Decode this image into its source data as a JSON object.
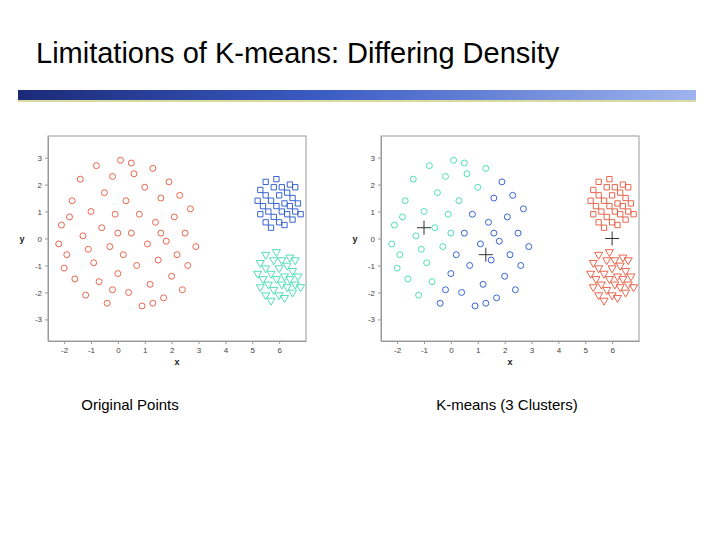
{
  "slide": {
    "title": "Limitations of K-means: Differing Density"
  },
  "chart_data": [
    {
      "type": "scatter",
      "title": "Original Points",
      "x_label": "x",
      "y_label": "y",
      "xlim": [
        -2.6,
        7
      ],
      "ylim": [
        -3.8,
        3.8
      ],
      "xticks": [
        -2,
        -1,
        0,
        1,
        2,
        3,
        4,
        5,
        6
      ],
      "yticks": [
        -3,
        -2,
        -1,
        0,
        1,
        2,
        3
      ],
      "series": [
        {
          "color": "#e8553a",
          "marker": "circle",
          "x": [
            -2.1,
            -1.9,
            -1.7,
            -1.6,
            -1.4,
            -1.3,
            -1.2,
            -1.0,
            -0.9,
            -0.8,
            -0.7,
            -0.6,
            -0.5,
            -0.4,
            -0.3,
            -0.2,
            -0.1,
            0.0,
            0.1,
            0.2,
            0.3,
            0.4,
            0.5,
            0.6,
            0.7,
            0.8,
            0.9,
            1.0,
            1.1,
            1.2,
            1.3,
            1.4,
            1.5,
            1.6,
            1.7,
            1.8,
            1.9,
            2.0,
            2.1,
            2.2,
            2.3,
            2.4,
            2.5,
            2.6,
            2.7,
            2.9,
            -2.2,
            -1.8,
            -1.1,
            -0.2,
            0.5,
            1.3,
            -2.0,
            0.0,
            1.6
          ],
          "values": [
            0.5,
            -0.6,
            1.4,
            -1.5,
            2.2,
            0.1,
            -2.1,
            1.0,
            -0.9,
            2.7,
            -1.6,
            0.4,
            1.7,
            -2.4,
            -0.3,
            2.3,
            0.9,
            -1.3,
            2.9,
            -0.6,
            1.4,
            -2.0,
            0.2,
            2.4,
            -1.0,
            0.9,
            -2.5,
            1.9,
            -0.2,
            -1.7,
            2.6,
            0.6,
            -0.8,
            1.5,
            -2.2,
            -0.1,
            2.1,
            -1.4,
            0.8,
            -0.6,
            1.6,
            -1.9,
            0.2,
            -1.0,
            1.1,
            -0.3,
            -0.2,
            0.8,
            -0.4,
            -1.9,
            2.8,
            -2.4,
            -1.1,
            0.2,
            0.2
          ]
        },
        {
          "color": "#2255cc",
          "marker": "square",
          "x": [
            5.2,
            5.3,
            5.3,
            5.4,
            5.5,
            5.5,
            5.5,
            5.6,
            5.7,
            5.7,
            5.8,
            5.8,
            5.9,
            5.9,
            6.0,
            6.0,
            6.1,
            6.1,
            6.2,
            6.2,
            6.3,
            6.3,
            6.4,
            6.4,
            6.5,
            6.5,
            6.6,
            6.6,
            6.7,
            6.8
          ],
          "values": [
            1.4,
            0.9,
            1.8,
            1.2,
            0.6,
            1.6,
            2.1,
            1.0,
            1.4,
            0.4,
            1.9,
            0.8,
            1.2,
            2.2,
            1.6,
            0.6,
            1.0,
            1.9,
            1.3,
            0.5,
            1.7,
            0.9,
            2.0,
            1.2,
            0.7,
            1.5,
            1.0,
            1.9,
            1.3,
            0.9
          ]
        },
        {
          "color": "#3ddbb0",
          "marker": "triangle-down",
          "x": [
            5.2,
            5.3,
            5.3,
            5.4,
            5.5,
            5.5,
            5.5,
            5.6,
            5.7,
            5.7,
            5.8,
            5.8,
            5.9,
            5.9,
            6.0,
            6.0,
            6.1,
            6.1,
            6.2,
            6.2,
            6.3,
            6.3,
            6.4,
            6.4,
            6.5,
            6.5,
            6.6,
            6.6,
            6.7,
            6.8
          ],
          "values": [
            -1.3,
            -1.8,
            -0.9,
            -1.5,
            -2.1,
            -1.1,
            -0.6,
            -1.7,
            -1.3,
            -2.3,
            -0.8,
            -1.9,
            -1.5,
            -0.5,
            -1.1,
            -2.1,
            -1.7,
            -0.8,
            -1.4,
            -2.2,
            -1.0,
            -1.8,
            -0.7,
            -1.5,
            -2.0,
            -1.2,
            -1.7,
            -0.8,
            -1.4,
            -1.8
          ]
        }
      ]
    },
    {
      "type": "scatter",
      "title": "K-means (3 Clusters)",
      "x_label": "x",
      "y_label": "y",
      "xlim": [
        -2.6,
        7
      ],
      "ylim": [
        -3.8,
        3.8
      ],
      "xticks": [
        -2,
        -1,
        0,
        1,
        2,
        3,
        4,
        5,
        6
      ],
      "yticks": [
        -3,
        -2,
        -1,
        0,
        1,
        2,
        3
      ],
      "series": [
        {
          "color": "#3ddbb0",
          "marker": "circle",
          "x": [
            -2.1,
            -1.9,
            -1.7,
            -1.6,
            -1.4,
            -1.3,
            -1.2,
            -1.0,
            -0.9,
            -0.8,
            -0.7,
            -0.6,
            -0.5,
            -0.3,
            -0.2,
            -0.1,
            0.1,
            0.3,
            0.6,
            1.0,
            1.3,
            -2.2,
            -1.8,
            -1.1,
            0.5,
            -2.0,
            0.0
          ],
          "values": [
            0.5,
            -0.6,
            1.4,
            -1.5,
            2.2,
            0.1,
            -2.1,
            1.0,
            -0.9,
            2.7,
            -1.6,
            0.4,
            1.7,
            -0.3,
            2.3,
            0.9,
            2.9,
            1.4,
            2.4,
            1.9,
            2.6,
            -0.2,
            0.8,
            -0.4,
            2.8,
            -1.1,
            0.2
          ]
        },
        {
          "color": "#2255cc",
          "marker": "circle",
          "x": [
            -0.4,
            0.0,
            0.2,
            0.4,
            0.5,
            0.7,
            0.8,
            0.9,
            1.1,
            1.2,
            1.4,
            1.5,
            1.6,
            1.7,
            1.8,
            1.9,
            2.0,
            2.1,
            2.2,
            2.3,
            2.4,
            2.5,
            2.6,
            2.7,
            2.9,
            -0.2,
            1.3,
            1.6
          ],
          "values": [
            -2.4,
            -1.3,
            -0.6,
            -2.0,
            0.2,
            -1.0,
            0.9,
            -2.5,
            -0.2,
            -1.7,
            0.6,
            -0.8,
            1.5,
            -2.2,
            -0.1,
            2.1,
            -1.4,
            0.8,
            -0.6,
            1.6,
            -1.9,
            0.2,
            -1.0,
            1.1,
            -0.3,
            -1.9,
            -2.4,
            0.2
          ]
        },
        {
          "color": "#e8553a",
          "marker": "square",
          "x": [
            5.2,
            5.3,
            5.3,
            5.4,
            5.5,
            5.5,
            5.5,
            5.6,
            5.7,
            5.7,
            5.8,
            5.8,
            5.9,
            5.9,
            6.0,
            6.0,
            6.1,
            6.1,
            6.2,
            6.2,
            6.3,
            6.3,
            6.4,
            6.4,
            6.5,
            6.5,
            6.6,
            6.6,
            6.7,
            6.8
          ],
          "values": [
            1.4,
            0.9,
            1.8,
            1.2,
            0.6,
            1.6,
            2.1,
            1.0,
            1.4,
            0.4,
            1.9,
            0.8,
            1.2,
            2.2,
            1.6,
            0.6,
            1.0,
            1.9,
            1.3,
            0.5,
            1.7,
            0.9,
            2.0,
            1.2,
            0.7,
            1.5,
            1.0,
            1.9,
            1.3,
            0.9
          ]
        },
        {
          "color": "#e8553a",
          "marker": "triangle-down",
          "x": [
            5.2,
            5.3,
            5.3,
            5.4,
            5.5,
            5.5,
            5.5,
            5.6,
            5.7,
            5.7,
            5.8,
            5.8,
            5.9,
            5.9,
            6.0,
            6.0,
            6.1,
            6.1,
            6.2,
            6.2,
            6.3,
            6.3,
            6.4,
            6.4,
            6.5,
            6.5,
            6.6,
            6.6,
            6.7,
            6.8
          ],
          "values": [
            -1.3,
            -1.8,
            -0.9,
            -1.5,
            -2.1,
            -1.1,
            -0.6,
            -1.7,
            -1.3,
            -2.3,
            -0.8,
            -1.9,
            -1.5,
            -0.5,
            -1.1,
            -2.1,
            -1.7,
            -0.8,
            -1.4,
            -2.2,
            -1.0,
            -1.8,
            -0.7,
            -1.5,
            -2.0,
            -1.2,
            -1.7,
            -0.8,
            -1.4,
            -1.8
          ]
        },
        {
          "color": "#333333",
          "marker": "plus",
          "x": [
            -1.0,
            1.3,
            6.0
          ],
          "values": [
            0.4,
            -0.6,
            0.0
          ]
        }
      ]
    }
  ]
}
